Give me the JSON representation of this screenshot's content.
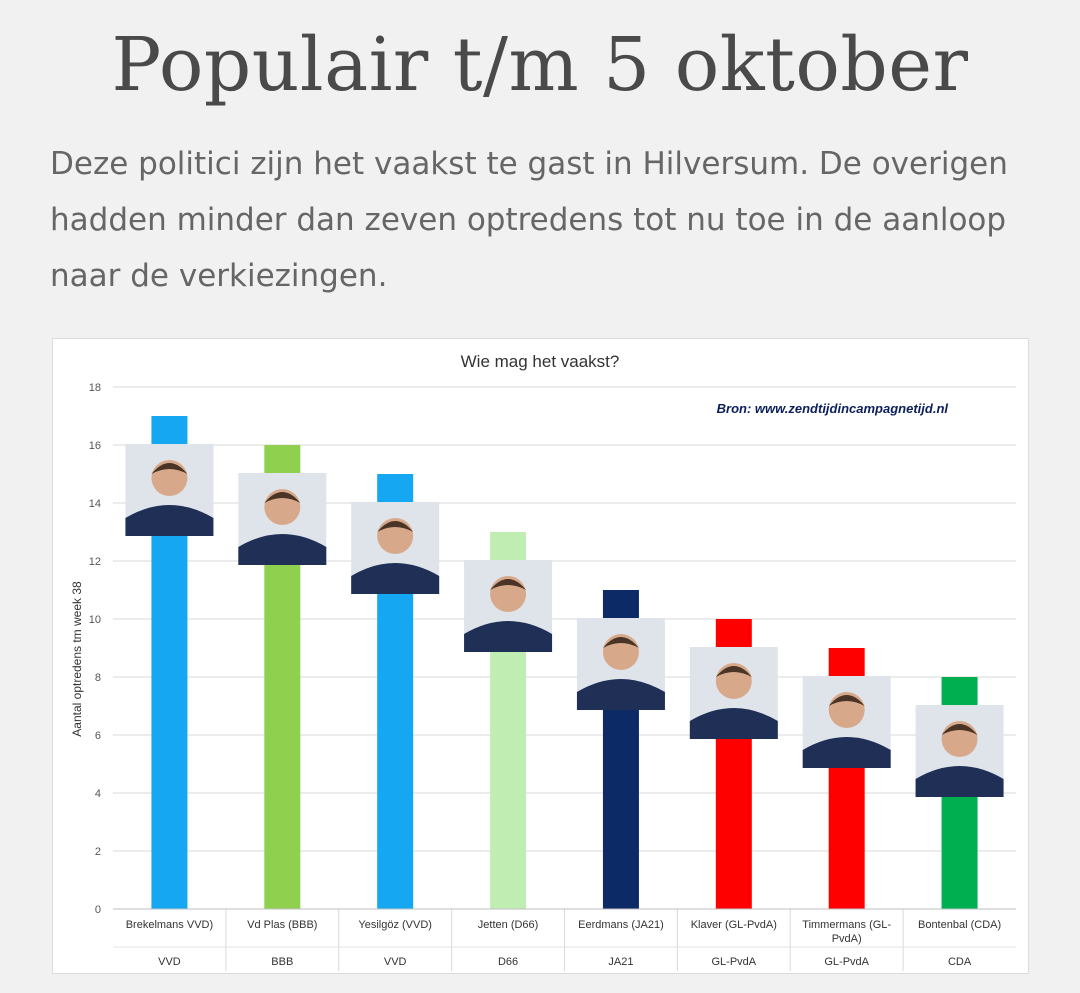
{
  "page": {
    "title": "Populair t/m 5 oktober",
    "intro": "Deze politici zijn het vaakst te gast in Hilversum. De overigen hadden minder dan zeven optredens tot nu toe in de aanloop naar de verkiezingen."
  },
  "chart_data": {
    "type": "bar",
    "title": "Wie mag het vaakst?",
    "ylabel": "Aantal optredens tm week 38",
    "xlabel": "",
    "source": "Bron: www.zendtijdincampagnetijd.nl",
    "ylim": [
      0,
      18
    ],
    "yticks": [
      0,
      2,
      4,
      6,
      8,
      10,
      12,
      14,
      16,
      18
    ],
    "grid": true,
    "categories": [
      "Brekelmans VVD)",
      "Vd Plas (BBB)",
      "Yesilgöz (VVD)",
      "Jetten (D66)",
      "Eerdmans (JA21)",
      "Klaver (GL-PvdA)",
      "Timmermans  (GL-PvdA)",
      "Bontenbal (CDA)"
    ],
    "groups": [
      "VVD",
      "BBB",
      "VVD",
      "D66",
      "JA21",
      "GL-PvdA",
      "GL-PvdA",
      "CDA"
    ],
    "values": [
      17,
      16,
      15,
      13,
      11,
      10,
      9,
      8
    ],
    "colors": [
      "#16a7f3",
      "#8fd14f",
      "#16a7f3",
      "#c0eeb2",
      "#0b2a66",
      "#ff0000",
      "#ff0000",
      "#00b050"
    ],
    "portraits": [
      "portrait-brekelmans",
      "portrait-vd-plas",
      "portrait-yesilgoz",
      "portrait-jetten",
      "portrait-eerdmans",
      "portrait-klaver",
      "portrait-timmermans",
      "portrait-bontenbal"
    ]
  }
}
